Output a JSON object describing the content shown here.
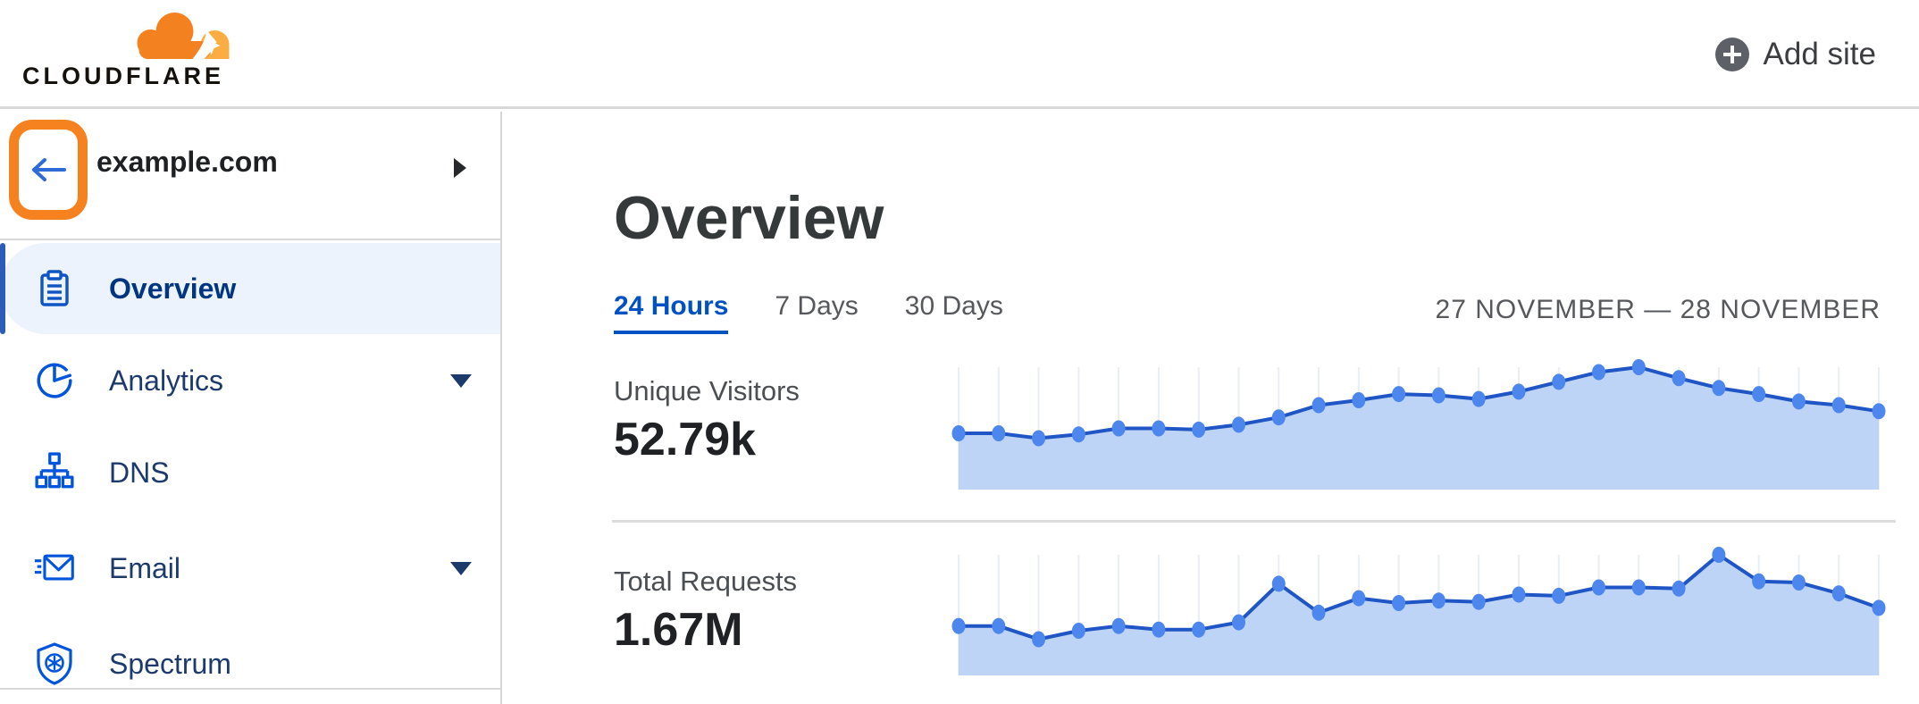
{
  "header": {
    "logo_text": "CLOUDFLARE",
    "add_site_label": "Add site"
  },
  "sidebar": {
    "site_name": "example.com",
    "items": [
      {
        "label": "Overview",
        "icon": "clipboard-icon",
        "selected": true,
        "expandable": false
      },
      {
        "label": "Analytics",
        "icon": "pie-chart-icon",
        "selected": false,
        "expandable": true
      },
      {
        "label": "DNS",
        "icon": "sitemap-icon",
        "selected": false,
        "expandable": false
      },
      {
        "label": "Email",
        "icon": "email-icon",
        "selected": false,
        "expandable": true
      },
      {
        "label": "Spectrum",
        "icon": "shield-icon",
        "selected": false,
        "expandable": false
      }
    ]
  },
  "main": {
    "title": "Overview",
    "tabs": [
      {
        "label": "24 Hours",
        "active": true
      },
      {
        "label": "7 Days",
        "active": false
      },
      {
        "label": "30 Days",
        "active": false
      }
    ],
    "date_range": "27 NOVEMBER — 28 NOVEMBER",
    "metrics": [
      {
        "label": "Unique Visitors",
        "value": "52.79k"
      },
      {
        "label": "Total Requests",
        "value": "1.67M"
      }
    ]
  },
  "colors": {
    "brand_orange": "#f6821f",
    "logo_orange_light": "#fbad41",
    "annotation_highlight": "#f6821f",
    "link_blue": "#0051c3",
    "icon_blue": "#0055dc",
    "nav_text": "#1d3a6d",
    "nav_selected_text": "#003681",
    "nav_selected_bg": "#edf3fc",
    "nav_selected_stripe": "#2d5cb8",
    "chart_line": "#1f55c4",
    "chart_dot": "#4d86ec",
    "chart_fill": "#bdd4f7",
    "chart_grid": "#e9edf4",
    "divider": "#d8d8d8",
    "heading_text": "#36393a",
    "muted_text": "#56585c",
    "value_text": "#1f2124"
  },
  "chart_data": [
    {
      "type": "area",
      "title": "Unique Visitors",
      "total_shown": "52.79k",
      "x_description": "hourly points across 24 hours, 27 November — 28 November",
      "num_points": 24,
      "ylim": [
        0,
        1
      ],
      "grid": "vertical gridlines per point",
      "legend": "none",
      "points_normalized": [
        0.46,
        0.46,
        0.42,
        0.45,
        0.5,
        0.5,
        0.49,
        0.53,
        0.59,
        0.69,
        0.73,
        0.78,
        0.77,
        0.74,
        0.8,
        0.88,
        0.96,
        1.0,
        0.91,
        0.83,
        0.78,
        0.72,
        0.69,
        0.64
      ]
    },
    {
      "type": "area",
      "title": "Total Requests",
      "total_shown": "1.67M",
      "x_description": "hourly points across 24 hours, 27 November — 28 November",
      "num_points": 24,
      "ylim": [
        0,
        1
      ],
      "grid": "vertical gridlines per point",
      "legend": "none",
      "points_normalized": [
        0.41,
        0.41,
        0.3,
        0.37,
        0.41,
        0.38,
        0.38,
        0.44,
        0.76,
        0.52,
        0.64,
        0.6,
        0.62,
        0.61,
        0.67,
        0.66,
        0.73,
        0.73,
        0.72,
        1.0,
        0.78,
        0.77,
        0.68,
        0.56
      ]
    }
  ]
}
